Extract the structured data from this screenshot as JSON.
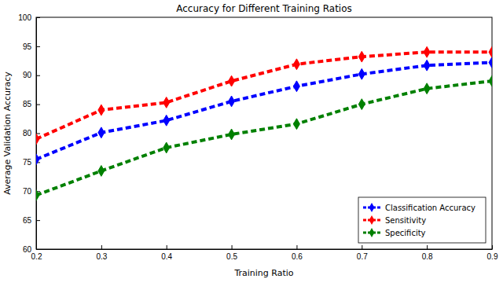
{
  "chart_data": {
    "type": "line",
    "title": "Accuracy for Different Training Ratios",
    "x_label": "Training Ratio",
    "y_label": "Average Validation Accuracy",
    "x": [
      0.2,
      0.3,
      0.4,
      0.5,
      0.6,
      0.7,
      0.8,
      0.9
    ],
    "series": [
      {
        "name": "Classification Accuracy",
        "color": "#0000ff",
        "marker": "diamond",
        "line_style": "dashed",
        "values": [
          75.5,
          80.1,
          82.2,
          85.5,
          88.1,
          90.2,
          91.7,
          92.2
        ]
      },
      {
        "name": "Sensitivity",
        "color": "#ff0000",
        "marker": "diamond",
        "line_style": "dashed",
        "values": [
          79.0,
          84.0,
          85.3,
          89.0,
          91.9,
          93.2,
          94.0,
          94.0
        ]
      },
      {
        "name": "Specificity",
        "color": "#008000",
        "marker": "diamond",
        "line_style": "dashed",
        "values": [
          69.3,
          73.5,
          77.5,
          79.8,
          81.6,
          85.0,
          87.7,
          89.0
        ]
      }
    ],
    "xlim": [
      0.2,
      0.9
    ],
    "xticks": [
      0.2,
      0.3,
      0.4,
      0.5,
      0.6,
      0.7,
      0.8,
      0.9
    ],
    "ylim": [
      60,
      100
    ],
    "yticks": [
      60,
      65,
      70,
      75,
      80,
      85,
      90,
      95,
      100
    ],
    "grid": false,
    "legend": "lower right"
  }
}
